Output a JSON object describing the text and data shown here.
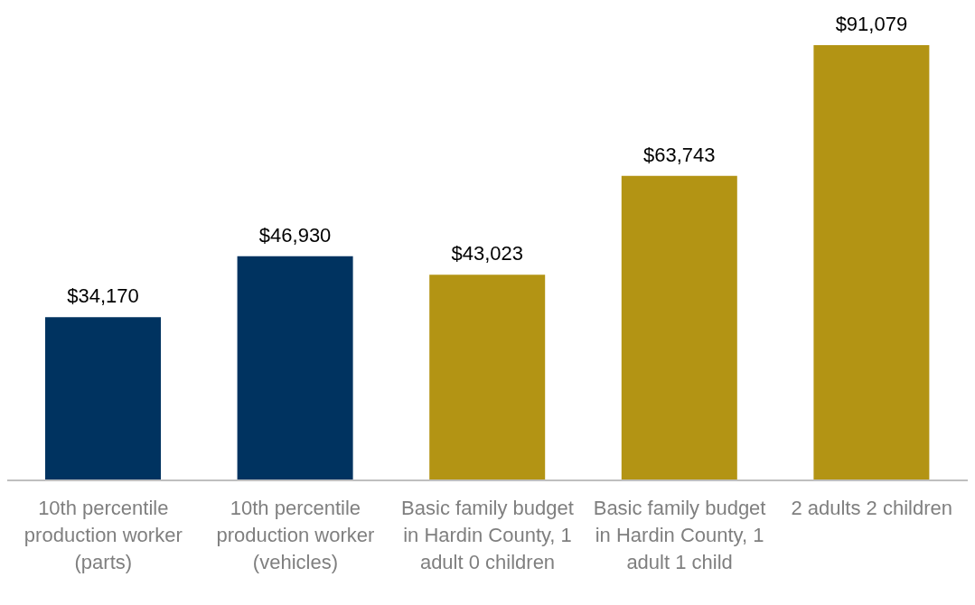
{
  "chart_data": {
    "type": "bar",
    "categories": [
      "10th percentile production worker (parts)",
      "10th percentile production worker (vehicles)",
      "Basic family budget in Hardin County, 1 adult 0 children",
      "Basic family budget in Hardin County, 1 adult 1 child",
      "2 adults 2 children"
    ],
    "values": [
      34170,
      46930,
      43023,
      63743,
      91079
    ],
    "colors": [
      "#003360",
      "#003360",
      "#b39414",
      "#b39414",
      "#b39414"
    ],
    "value_labels": [
      "$34,170",
      "$46,930",
      "$43,023",
      "$63,743",
      "$91,079"
    ],
    "grid": false,
    "legend": false
  }
}
